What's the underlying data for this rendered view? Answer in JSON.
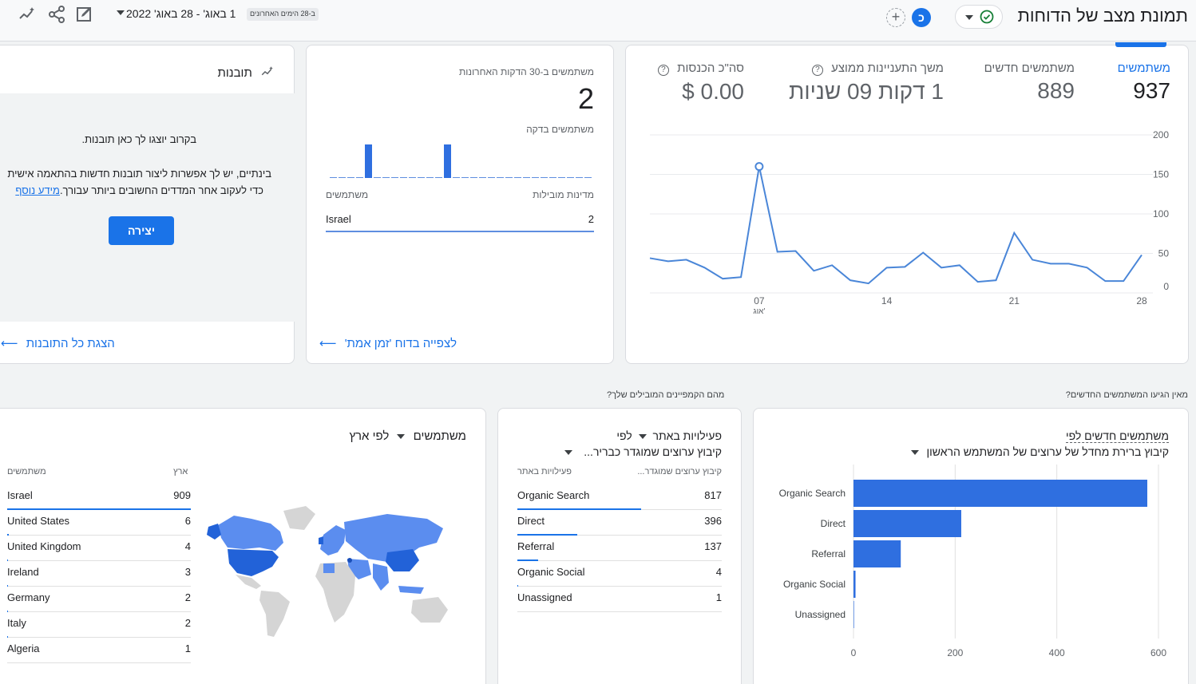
{
  "header": {
    "title": "תמונת מצב של הדוחות",
    "avatar_letter": "כ",
    "date_chip": "ב-28 הימים האחרונים",
    "date_range": "1 באוג' - 28 באוג' 2022"
  },
  "kpi_card": {
    "metrics": [
      {
        "label": "משתמשים",
        "value": "937"
      },
      {
        "label": "משתמשים חדשים",
        "value": "889"
      },
      {
        "label": "משך התעניינות ממוצע",
        "value": "1 דקות 09 שניות"
      },
      {
        "label": "סה\"כ הכנסות",
        "value": "$ 0.00"
      }
    ],
    "y_ticks": [
      "200",
      "150",
      "100",
      "50",
      "0"
    ],
    "x_ticks": [
      "07",
      "14",
      "21",
      "28"
    ],
    "x_month": "אוג'"
  },
  "chart_data": {
    "type": "line",
    "x": [
      "1",
      "2",
      "3",
      "4",
      "5",
      "6",
      "7",
      "8",
      "9",
      "10",
      "11",
      "12",
      "13",
      "14",
      "15",
      "16",
      "17",
      "18",
      "19",
      "20",
      "21",
      "22",
      "23",
      "24",
      "25",
      "26",
      "27",
      "28"
    ],
    "series": [
      {
        "name": "משתמשים",
        "values": [
          44,
          40,
          42,
          32,
          18,
          20,
          160,
          52,
          53,
          28,
          35,
          16,
          12,
          32,
          33,
          51,
          32,
          35,
          14,
          16,
          76,
          42,
          37,
          37,
          32,
          15,
          15,
          48
        ]
      }
    ],
    "ylim": [
      0,
      200
    ],
    "xlabel": "",
    "ylabel": "",
    "grid": true
  },
  "realtime_card": {
    "title": "משתמשים ב-30 הדקות האחרונות",
    "value": "2",
    "subtitle": "משתמשים בדקה",
    "minute_bars": [
      0,
      0,
      0,
      0,
      1,
      0,
      0,
      0,
      0,
      0,
      0,
      0,
      0,
      1,
      0,
      0,
      0,
      0,
      0,
      0,
      0,
      0,
      0,
      0,
      0,
      0,
      0,
      0,
      0,
      0
    ],
    "col_country": "מדינות מובילות",
    "col_users": "משתמשים",
    "rows": [
      {
        "name": "Israel",
        "value": "2"
      }
    ],
    "link": "לצפייה בדוח 'זמן אמת'"
  },
  "insights_card": {
    "title": "תובנות",
    "text1": "בקרוב יוצגו לך כאן תובנות.",
    "text2": "בינתיים, יש לך אפשרות ליצור תובנות חדשות בהתאמה אישית",
    "text3": "כדי לעקוב אחר המדדים החשובים ביותר עבורך.",
    "learn_more": "מידע נוסף",
    "create_button": "יצירה",
    "link": "הצגת כל התובנות"
  },
  "section_labels": {
    "new_users_q": "מאין הגיעו המשתמשים החדשים?",
    "campaigns_q": "מהם הקמפיינים המובילים שלך?"
  },
  "new_users_card": {
    "title": "משתמשים חדשים לפי",
    "dimension": "קיבוץ ברירת מחדל של ערוצים של המשתמש הראשון",
    "x_ticks": [
      "0",
      "200",
      "400",
      "600"
    ],
    "bars": [
      {
        "label": "Organic Search",
        "value": 578
      },
      {
        "label": "Direct",
        "value": 212
      },
      {
        "label": "Referral",
        "value": 93
      },
      {
        "label": "Organic Social",
        "value": 4
      },
      {
        "label": "Unassigned",
        "value": 1
      }
    ],
    "max": 600
  },
  "sessions_card": {
    "metric": "פעילויות באתר",
    "by": "לפי",
    "dimension": "קיבוץ ערוצים שמוגדר כבריר...",
    "col_dim": "קיבוץ ערוצים שמוגדר...",
    "col_metric": "פעילויות באתר",
    "rows": [
      {
        "name": "Organic Search",
        "value": "817",
        "frac": 1.0
      },
      {
        "name": "Direct",
        "value": "396",
        "frac": 0.485
      },
      {
        "name": "Referral",
        "value": "137",
        "frac": 0.168
      },
      {
        "name": "Organic Social",
        "value": "4",
        "frac": 0.005
      },
      {
        "name": "Unassigned",
        "value": "1",
        "frac": 0.001
      }
    ]
  },
  "country_card": {
    "metric": "משתמשים",
    "by": "לפי ארץ",
    "col_country": "ארץ",
    "col_users": "משתמשים",
    "rows": [
      {
        "name": "Israel",
        "value": "909",
        "frac": 1.0
      },
      {
        "name": "United States",
        "value": "6",
        "frac": 0.0066
      },
      {
        "name": "United Kingdom",
        "value": "4",
        "frac": 0.0044
      },
      {
        "name": "Ireland",
        "value": "3",
        "frac": 0.0033
      },
      {
        "name": "Germany",
        "value": "2",
        "frac": 0.0022
      },
      {
        "name": "Italy",
        "value": "2",
        "frac": 0.0022
      },
      {
        "name": "Algeria",
        "value": "1",
        "frac": 0.0011
      }
    ]
  },
  "colors": {
    "accent": "#1a73e8",
    "bar": "#2f6fe0",
    "map_dark": "#2262d8",
    "map_light": "#5b8def",
    "map_grey": "#d5d5d5"
  }
}
